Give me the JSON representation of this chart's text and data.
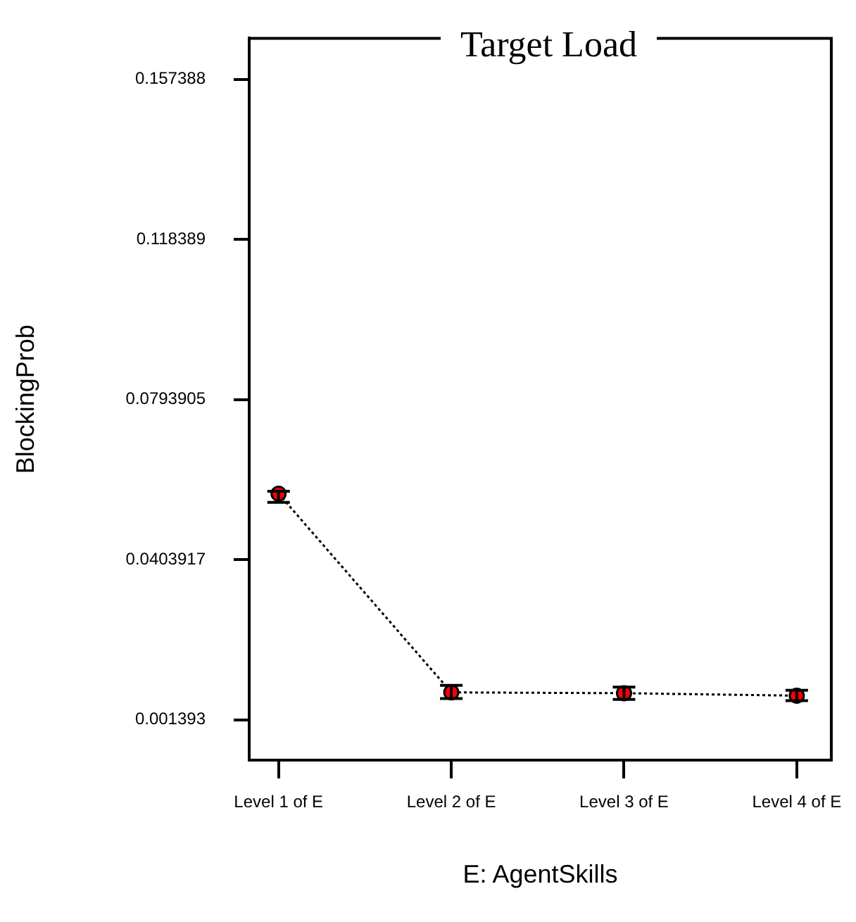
{
  "chart_data": {
    "type": "line",
    "title": "Target Load",
    "xlabel": "E: AgentSkills",
    "ylabel": "BlockingProb",
    "categories": [
      "Level 1 of E",
      "Level 2 of E",
      "Level 3 of E",
      "Level 4 of E"
    ],
    "series": [
      {
        "color": "#ff0000",
        "values": [
          0.0565,
          0.0081,
          0.0079,
          0.0073
        ],
        "errors": [
          [
            0.0544,
            0.0571
          ],
          [
            0.0066,
            0.0098
          ],
          [
            0.0064,
            0.0094
          ],
          [
            0.0061,
            0.0086
          ]
        ]
      }
    ],
    "ylim": [
      -0.0084,
      0.1674
    ],
    "yticks": [
      0.001393,
      0.0403917,
      0.0793905,
      0.118389,
      0.157388
    ],
    "grid": false,
    "legend": false,
    "marker": "circle",
    "line_style": "dotted"
  }
}
